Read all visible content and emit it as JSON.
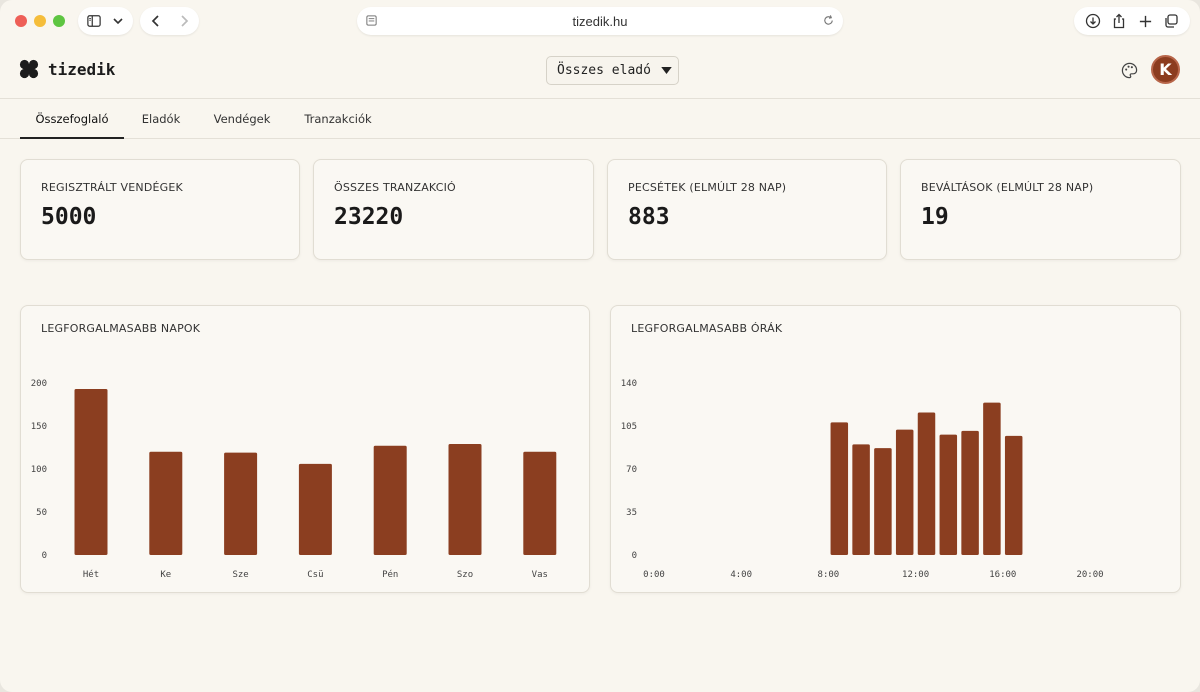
{
  "browser": {
    "url": "tizedik.hu",
    "icons": [
      "sidebar-icon",
      "chevron-down-icon",
      "back-icon",
      "forward-icon",
      "page-icon",
      "reload-icon",
      "download-icon",
      "share-icon",
      "new-tab-icon",
      "tabs-overview-icon"
    ]
  },
  "header": {
    "logo_text": "tizedik",
    "seller_select": "Összes eladó",
    "avatar_letter": "K"
  },
  "tabs": [
    {
      "label": "Összefoglaló",
      "active": true
    },
    {
      "label": "Eladók",
      "active": false
    },
    {
      "label": "Vendégek",
      "active": false
    },
    {
      "label": "Tranzakciók",
      "active": false
    }
  ],
  "stats": [
    {
      "label": "REGISZTRÁLT VENDÉGEK",
      "value": "5000"
    },
    {
      "label": "ÖSSZES TRANZAKCIÓ",
      "value": "23220"
    },
    {
      "label": "PECSÉTEK (ELMÚLT 28 NAP)",
      "value": "883"
    },
    {
      "label": "BEVÁLTÁSOK (ELMÚLT 28 NAP)",
      "value": "19"
    }
  ],
  "colors": {
    "bar": "#8b3e20",
    "accent": "#8c3c1f"
  },
  "chart_data": [
    {
      "type": "bar",
      "title": "LEGFORGALMASABB NAPOK",
      "categories": [
        "Hét",
        "Ke",
        "Sze",
        "Csü",
        "Pén",
        "Szo",
        "Vas"
      ],
      "values": [
        193,
        120,
        119,
        106,
        127,
        129,
        120
      ],
      "yticks": [
        "0",
        "50",
        "100",
        "150",
        "200"
      ],
      "ylim": [
        0,
        200
      ]
    },
    {
      "type": "bar",
      "title": "LEGFORGALMASABB ÓRÁK",
      "xticks": [
        "0:00",
        "4:00",
        "8:00",
        "12:00",
        "16:00",
        "20:00"
      ],
      "x": [
        8,
        9,
        10,
        11,
        12,
        13,
        14,
        15,
        16
      ],
      "values": [
        108,
        90,
        87,
        102,
        116,
        98,
        101,
        124,
        97
      ],
      "yticks": [
        "0",
        "35",
        "70",
        "105",
        "140"
      ],
      "ylim": [
        0,
        140
      ],
      "xlim": [
        0,
        24
      ]
    }
  ]
}
